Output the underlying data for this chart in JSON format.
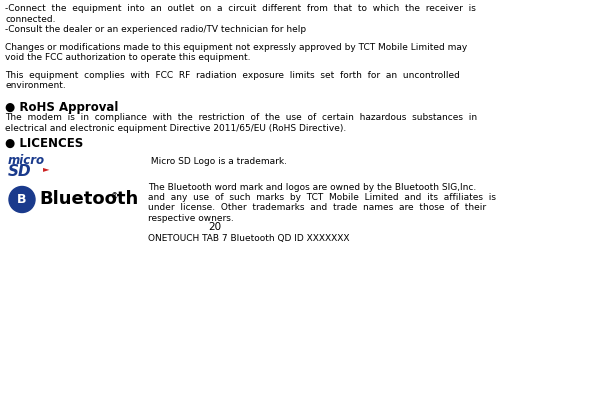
{
  "bg_color": "#ffffff",
  "text_color": "#000000",
  "fs": 6.5,
  "fs_heading": 8.5,
  "ml": 0.008,
  "col_split": 0.245,
  "microsd_color": "#1a3a8c",
  "microsd_red": "#cc2222",
  "bt_blue": "#1a3a8c",
  "bt_circle_color": "#1a3a8c",
  "line1a": "-Connect  the  equipment  into  an  outlet  on  a  circuit  different  from  that  to  which  the  receiver  is",
  "line1b": "connected.",
  "line2": "-Consult the dealer or an experienced radio/TV technician for help",
  "para1a": "Changes or modifications made to this equipment not expressly approved by TCT Mobile Limited may",
  "para1b": "void the FCC authorization to operate this equipment.",
  "para2a": "This  equipment  complies  with  FCC  RF  radiation  exposure  limits  set  forth  for  an  uncontrolled",
  "para2b": "environment.",
  "bullet1_head": "● RoHS Approval",
  "bullet1a": "The  modem  is  in  compliance  with  the  restriction  of  the  use  of  certain  hazardous  substances  in",
  "bullet1b": "electrical and electronic equipment Directive 2011/65/EU (RoHS Directive).",
  "bullet2_head": "● LICENCES",
  "microsd_label": " Micro SD Logo is a trademark.",
  "bt_line1": "The Bluetooth word mark and logos are owned by the Bluetooth SIG,Inc.",
  "bt_line2": "and  any  use  of  such  marks  by  TCT  Mobile  Limited  and  its  affiliates  is",
  "bt_line3": "under  license.  Other  trademarks  and  trade  names  are  those  of  their",
  "bt_line4": "respective owners.",
  "bottom": "ONETOUCH TAB 7 Bluetooth QD ID XXXXXXX",
  "page_num": "20"
}
